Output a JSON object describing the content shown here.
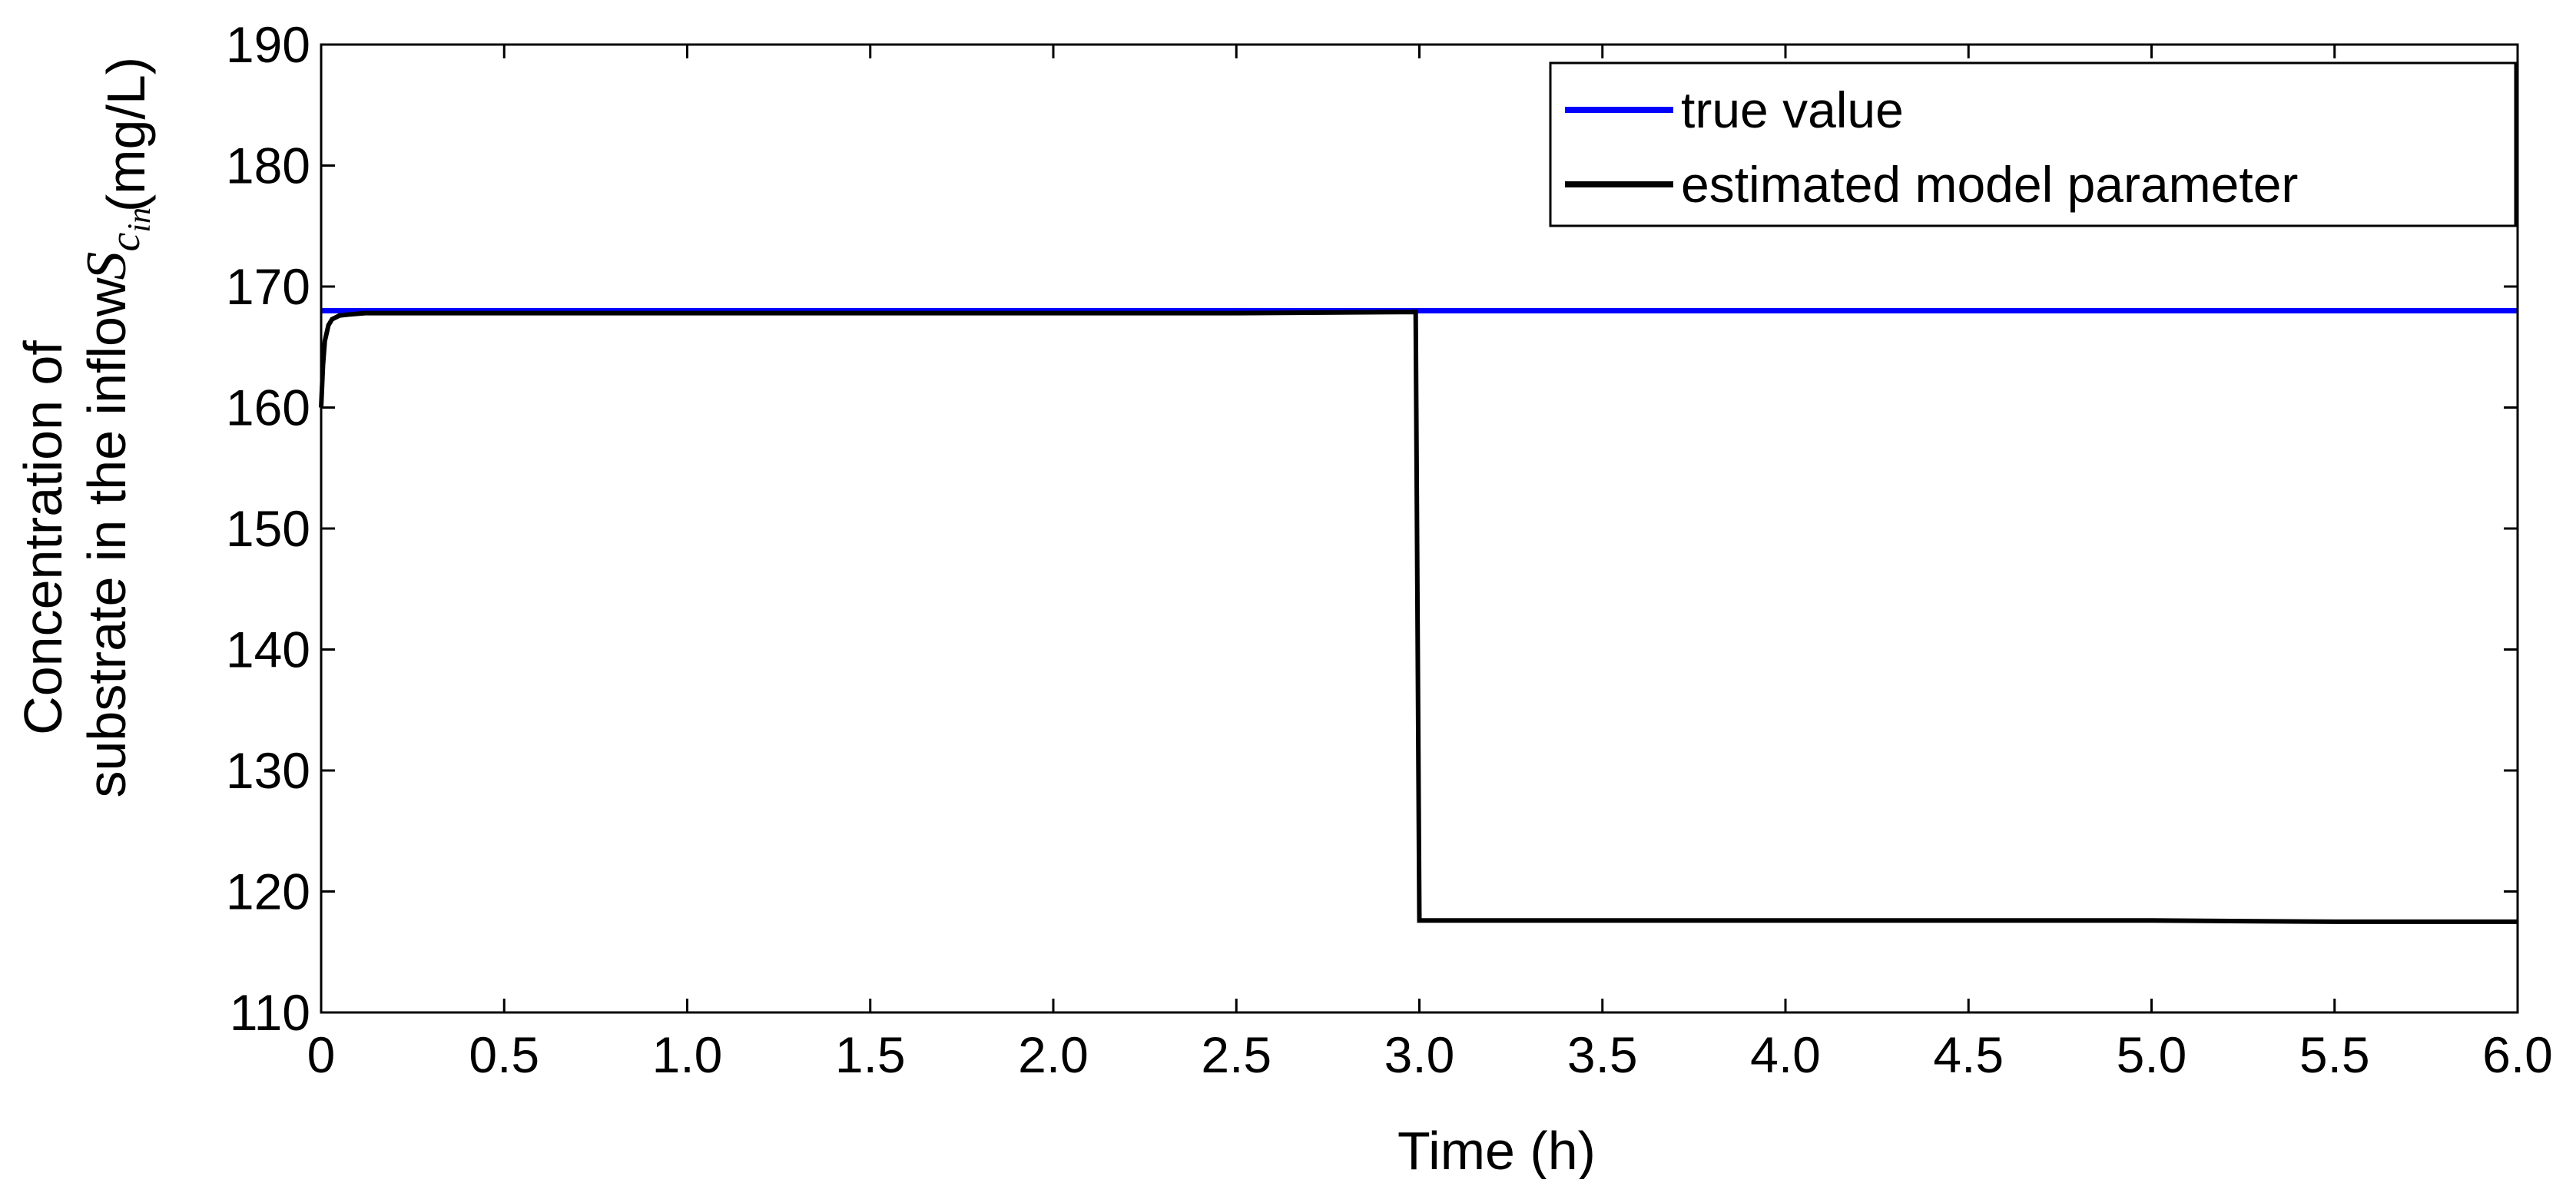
{
  "chart_data": {
    "type": "line",
    "xlabel": "Time (h)",
    "ylabel_line1": "Concentration of",
    "ylabel_line2": "substrate in the inflow",
    "ylabel_symbol": "S",
    "ylabel_symbol_sub": "c",
    "ylabel_symbol_subsub": "in",
    "ylabel_unit": "(mg/L)",
    "xlim": [
      0,
      6.0
    ],
    "ylim": [
      110,
      190
    ],
    "x_ticks": [
      0,
      0.5,
      1.0,
      1.5,
      2.0,
      2.5,
      3.0,
      3.5,
      4.0,
      4.5,
      5.0,
      5.5,
      6.0
    ],
    "x_tick_labels": [
      "0",
      "0.5",
      "1.0",
      "1.5",
      "2.0",
      "2.5",
      "3.0",
      "3.5",
      "4.0",
      "4.5",
      "5.0",
      "5.5",
      "6.0"
    ],
    "y_ticks": [
      110,
      120,
      130,
      140,
      150,
      160,
      170,
      180,
      190
    ],
    "y_tick_labels": [
      "110",
      "120",
      "130",
      "140",
      "150",
      "160",
      "170",
      "180",
      "190"
    ],
    "grid": false,
    "legend_position": "top-right",
    "series": [
      {
        "name": "true value",
        "color": "#0000ff",
        "x": [
          0,
          6.0
        ],
        "y": [
          168,
          168
        ]
      },
      {
        "name": "estimated model parameter",
        "color": "#000000",
        "x": [
          0,
          0.005,
          0.01,
          0.02,
          0.03,
          0.05,
          0.08,
          0.12,
          0.2,
          0.5,
          1.0,
          1.5,
          2.0,
          2.5,
          2.99,
          3.0,
          3.01,
          3.5,
          4.0,
          4.5,
          5.0,
          5.5,
          6.0
        ],
        "y": [
          160,
          163.5,
          165.5,
          166.8,
          167.3,
          167.6,
          167.7,
          167.8,
          167.8,
          167.8,
          167.8,
          167.8,
          167.8,
          167.8,
          167.9,
          117.6,
          117.6,
          117.6,
          117.6,
          117.6,
          117.6,
          117.5,
          117.5
        ]
      }
    ]
  }
}
